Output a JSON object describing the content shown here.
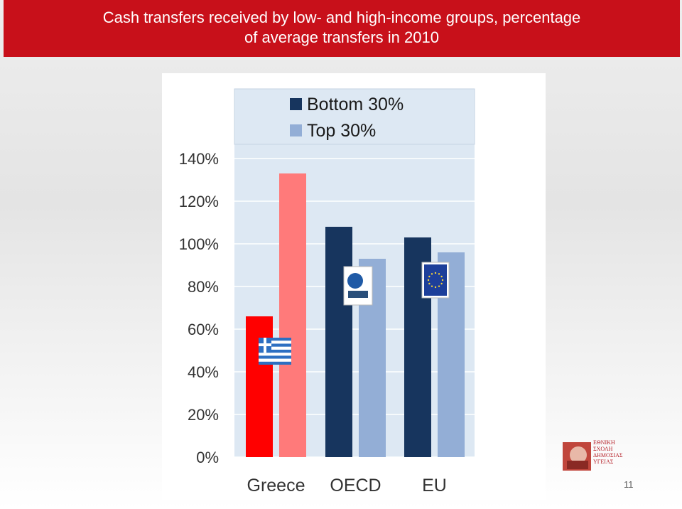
{
  "title": {
    "line1": "Cash transfers received by low- and high-income groups, percentage",
    "line2": "of average transfers in 2010"
  },
  "page_number": "11",
  "logo": {
    "lines": [
      "ΕΘΝΙΚΗ",
      "ΣΧΟΛΗ",
      "ΔΗΜΟΣΙΑΣ",
      "ΥΓΕΙΑΣ"
    ]
  },
  "colors": {
    "title_bar": "#c8101a",
    "greece_bottom": "#ff0000",
    "greece_top": "#ff7a7a",
    "bottom": "#17355e",
    "top": "#93aed6",
    "plot_bg": "#dde8f3",
    "legend_bg": "#dde8f3"
  },
  "chart_data": {
    "type": "bar",
    "categories": [
      "Greece",
      "OECD",
      "EU"
    ],
    "series": [
      {
        "name": "Bottom 30%",
        "values": [
          66,
          108,
          103
        ]
      },
      {
        "name": "Top 30%",
        "values": [
          133,
          93,
          96
        ]
      }
    ],
    "y_ticks": [
      "0%",
      "20%",
      "40%",
      "60%",
      "80%",
      "100%",
      "120%",
      "140%"
    ],
    "ylim": [
      0,
      140
    ],
    "legend_position": "top",
    "grid": true
  }
}
